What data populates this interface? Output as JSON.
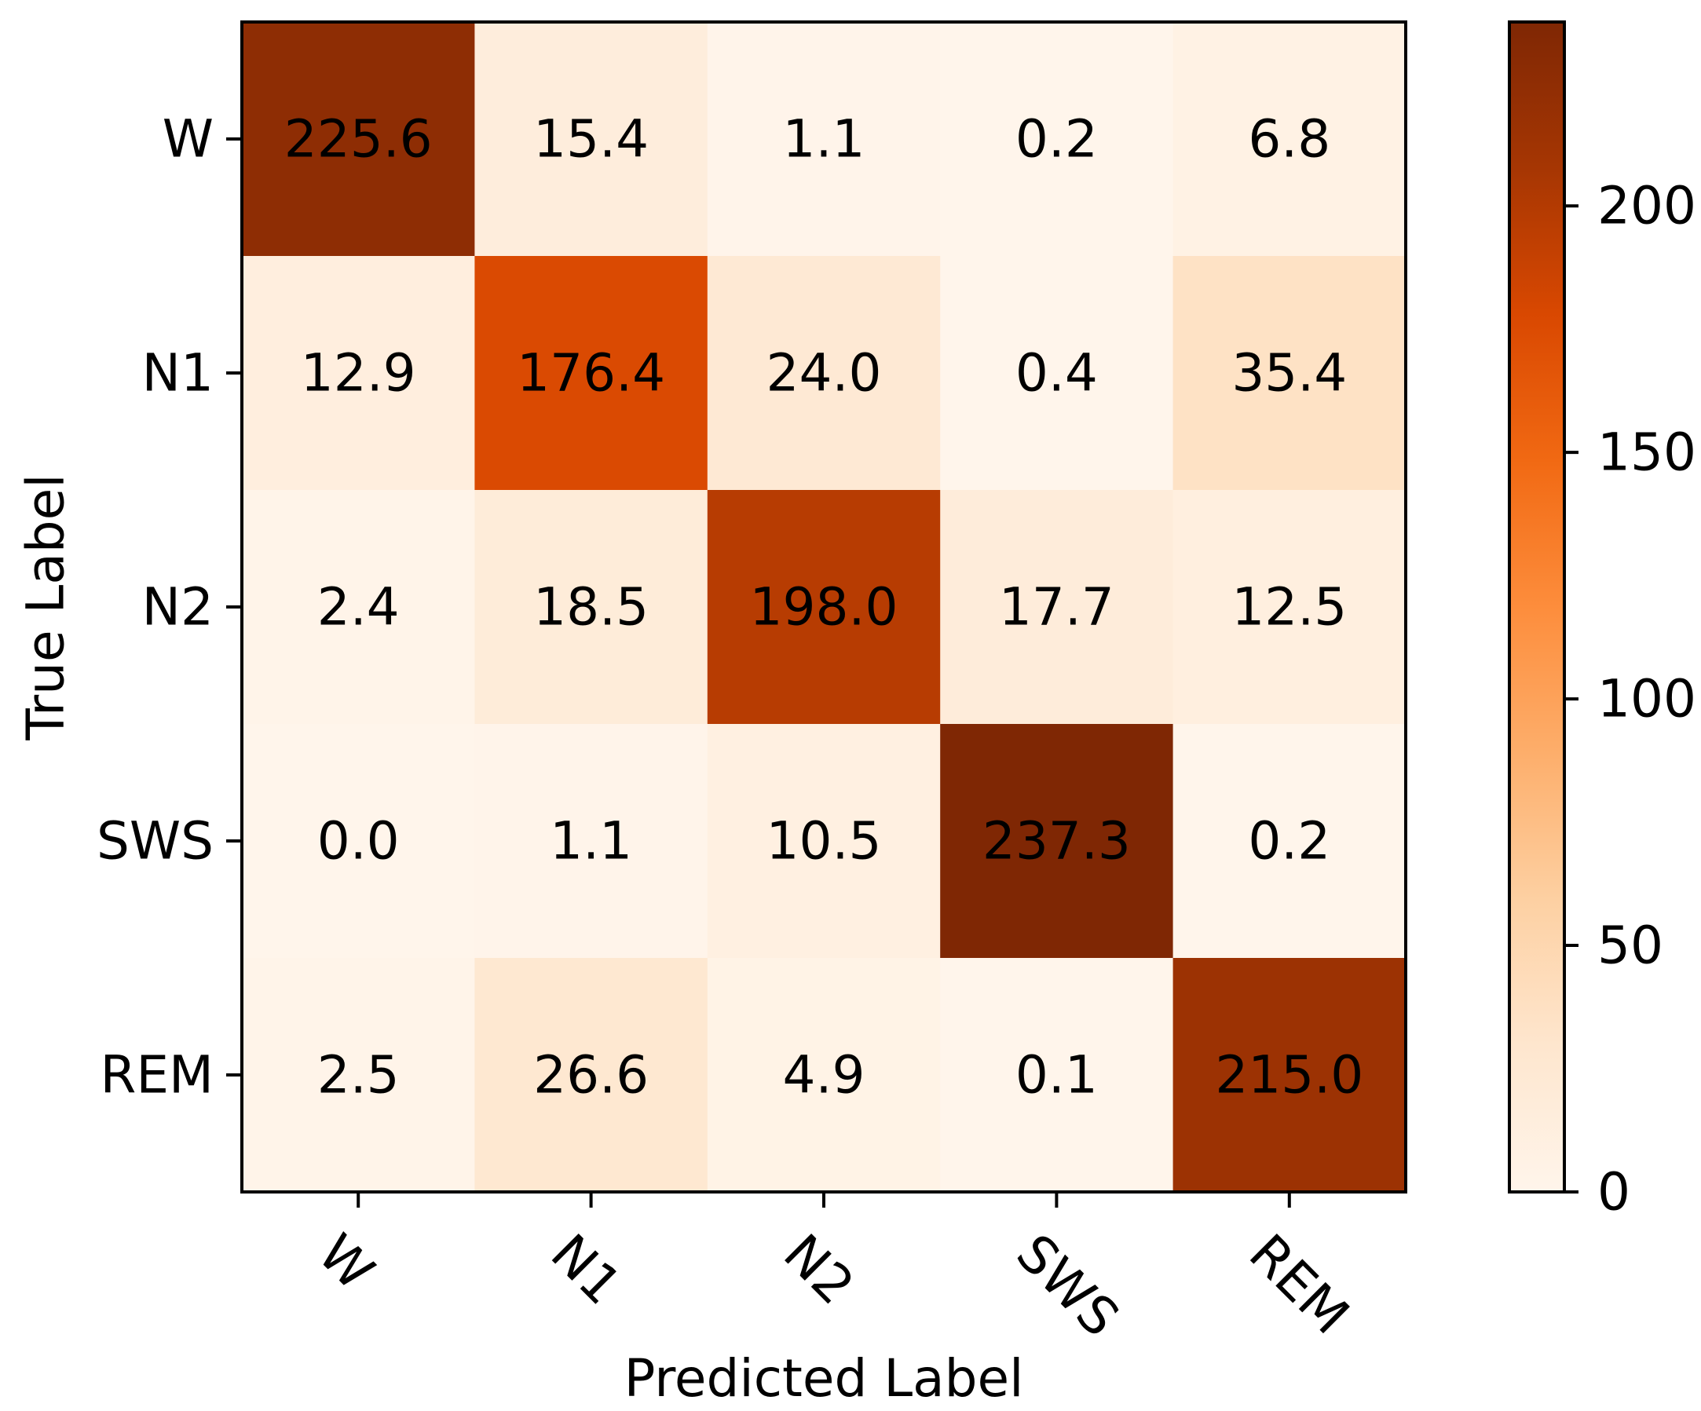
{
  "chart_data": {
    "type": "heatmap",
    "title": "",
    "xlabel": "Predicted Label",
    "ylabel": "True Label",
    "x_categories": [
      "W",
      "N1",
      "N2",
      "SWS",
      "REM"
    ],
    "y_categories": [
      "W",
      "N1",
      "N2",
      "SWS",
      "REM"
    ],
    "values": [
      [
        225.6,
        15.4,
        1.1,
        0.2,
        6.8
      ],
      [
        12.9,
        176.4,
        24.0,
        0.4,
        35.4
      ],
      [
        2.4,
        18.5,
        198.0,
        17.7,
        12.5
      ],
      [
        0.0,
        1.1,
        10.5,
        237.3,
        0.2
      ],
      [
        2.5,
        26.6,
        4.9,
        0.1,
        215.0
      ]
    ],
    "value_format_decimals": 1,
    "colormap": "Oranges",
    "color_stops": [
      "#fff5eb",
      "#fee6ce",
      "#fdd0a2",
      "#fdae6b",
      "#fd8d3c",
      "#f16913",
      "#d94801",
      "#a63603",
      "#7f2704"
    ],
    "colorbar": {
      "range": [
        0,
        237.3
      ],
      "ticks": [
        0,
        50,
        100,
        150,
        200
      ],
      "tick_labels": [
        "0",
        "50",
        "100",
        "150",
        "200"
      ]
    }
  }
}
